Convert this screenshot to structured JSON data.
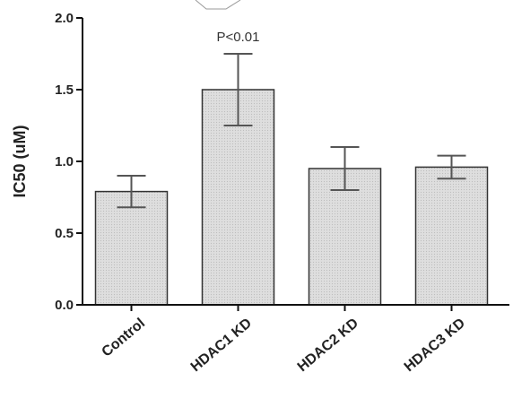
{
  "chart_data": {
    "type": "bar",
    "categories": [
      "Control",
      "HDAC1 KD",
      "HDAC2 KD",
      "HDAC3 KD"
    ],
    "values": [
      0.79,
      1.5,
      0.95,
      0.96
    ],
    "error": [
      0.11,
      0.25,
      0.15,
      0.08
    ],
    "xlabel": "",
    "ylabel": "IC50 (uM)",
    "ylim": [
      0,
      2.0
    ],
    "yticks": [
      0.0,
      0.5,
      1.0,
      1.5,
      2.0
    ],
    "ytick_labels": [
      "0.0",
      "0.5",
      "1.0",
      "1.5",
      "2.0"
    ],
    "grid": false,
    "annotations": [
      {
        "category": "HDAC1 KD",
        "text": "P<0.01"
      }
    ],
    "colors": {
      "bar_fill": "#d9d9d9",
      "bar_stroke": "#333333",
      "axis": "#111111"
    }
  }
}
